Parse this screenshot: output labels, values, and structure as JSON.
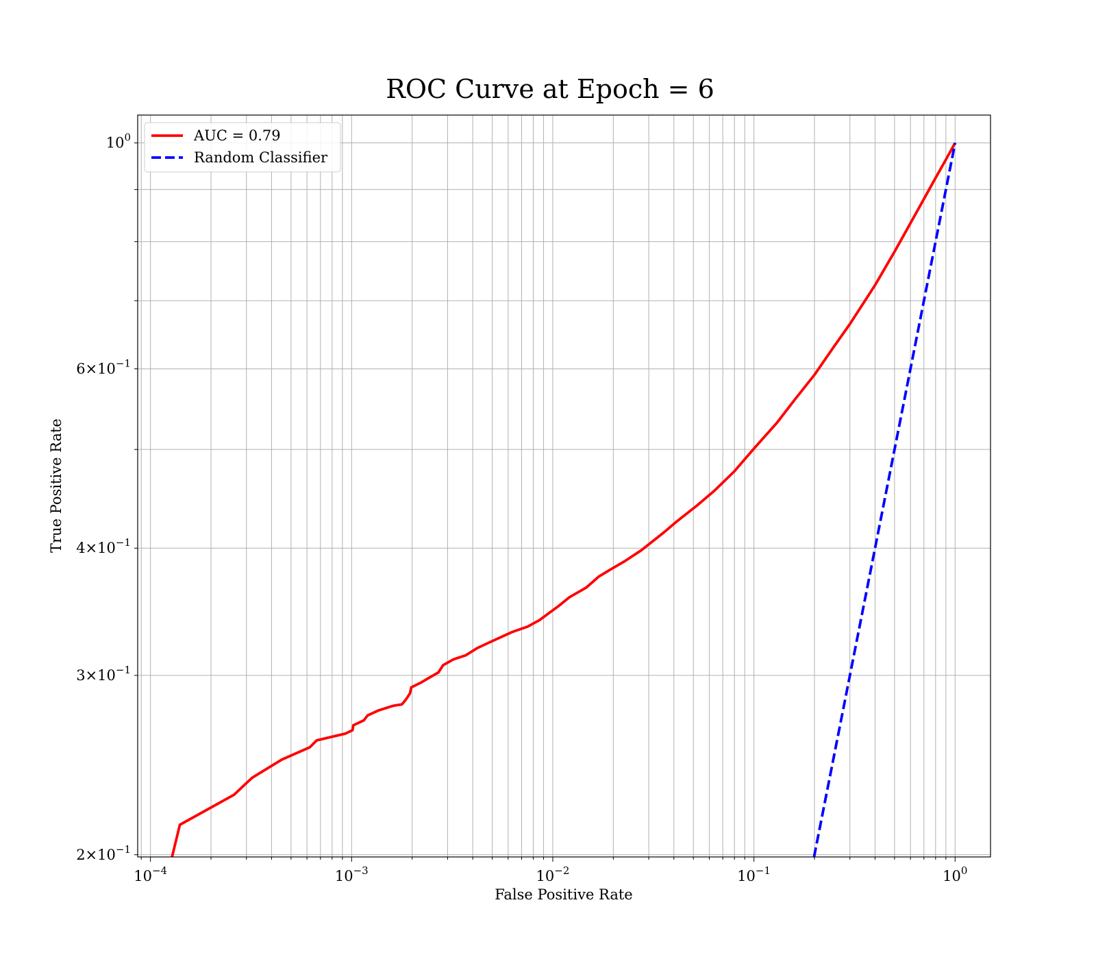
{
  "chart_data": {
    "type": "line",
    "title": "ROC Curve at Epoch = 6",
    "xlabel": "False Positive Rate",
    "ylabel": "True Positive Rate",
    "xscale": "log",
    "yscale": "log",
    "xlim": [
      8.64e-05,
      1.5
    ],
    "ylim": [
      0.199,
      1.065
    ],
    "grid": true,
    "legend_placement": "top-left",
    "x_ticks": [
      {
        "value": 0.0001,
        "base": "10",
        "exp": "−4"
      },
      {
        "value": 0.001,
        "base": "10",
        "exp": "−3"
      },
      {
        "value": 0.01,
        "base": "10",
        "exp": "−2"
      },
      {
        "value": 0.1,
        "base": "10",
        "exp": "−1"
      },
      {
        "value": 1,
        "base": "10",
        "exp": "0"
      }
    ],
    "y_ticks": [
      {
        "value": 0.2,
        "base": "2×10",
        "exp": "−1"
      },
      {
        "value": 0.3,
        "base": "3×10",
        "exp": "−1"
      },
      {
        "value": 0.4,
        "base": "4×10",
        "exp": "−1"
      },
      {
        "value": 0.6,
        "base": "6×10",
        "exp": "−1"
      },
      {
        "value": 1,
        "base": "10",
        "exp": "0"
      }
    ],
    "series": [
      {
        "name": "AUC = 0.79",
        "color": "#ff0000",
        "style": "solid",
        "x": [
          0.000128,
          0.00014,
          0.00026,
          0.00032,
          0.00045,
          0.00062,
          0.00067,
          0.00093,
          0.00101,
          0.00102,
          0.00115,
          0.0012,
          0.00135,
          0.0016,
          0.00178,
          0.00186,
          0.00195,
          0.00198,
          0.0022,
          0.0024,
          0.0027,
          0.00285,
          0.0032,
          0.0037,
          0.0042,
          0.0048,
          0.0055,
          0.0063,
          0.0075,
          0.0086,
          0.0095,
          0.0107,
          0.0121,
          0.0147,
          0.0169,
          0.0193,
          0.0226,
          0.0275,
          0.0354,
          0.0414,
          0.0525,
          0.064,
          0.08,
          0.1,
          0.13,
          0.16,
          0.2,
          0.25,
          0.3,
          0.4,
          0.5,
          0.6,
          0.7,
          0.8,
          0.9,
          1.0
        ],
        "y": [
          0.199,
          0.214,
          0.229,
          0.238,
          0.248,
          0.255,
          0.259,
          0.263,
          0.265,
          0.268,
          0.271,
          0.274,
          0.277,
          0.28,
          0.281,
          0.284,
          0.288,
          0.292,
          0.295,
          0.298,
          0.302,
          0.307,
          0.311,
          0.314,
          0.319,
          0.323,
          0.327,
          0.331,
          0.335,
          0.34,
          0.345,
          0.351,
          0.358,
          0.366,
          0.375,
          0.381,
          0.388,
          0.398,
          0.414,
          0.425,
          0.441,
          0.456,
          0.476,
          0.501,
          0.531,
          0.56,
          0.592,
          0.631,
          0.664,
          0.725,
          0.782,
          0.834,
          0.881,
          0.924,
          0.963,
          1.0
        ]
      },
      {
        "name": "Random Classifier",
        "color": "#0000ff",
        "style": "dashed",
        "x": [
          0.199,
          1.0
        ],
        "y": [
          0.199,
          1.0
        ]
      }
    ]
  }
}
